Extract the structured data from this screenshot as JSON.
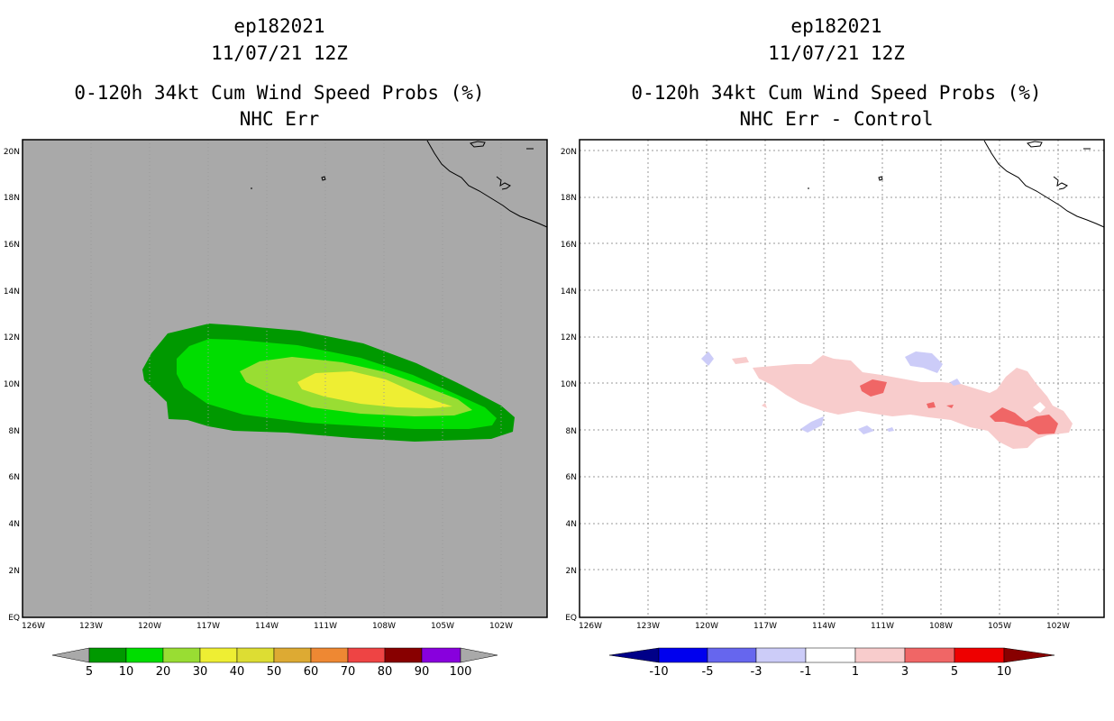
{
  "colors": {
    "land_gray": "#a9a9a9",
    "prob_scale": [
      "#009900",
      "#00dd00",
      "#99dd33",
      "#eeee33",
      "#dddd33",
      "#ddaa33",
      "#ee8833",
      "#ee4444",
      "#880000",
      "#8800dd"
    ],
    "diff_scale": [
      "#000088",
      "#0000ee",
      "#6666ee",
      "#ccccf8",
      "#ffffff",
      "#f8cccc",
      "#f06666",
      "#ee0000",
      "#880000"
    ]
  },
  "left_panel": {
    "title_storm": "ep182021",
    "title_date": "11/07/21 12Z",
    "title_product": "0-120h 34kt Cum Wind Speed Probs (%)",
    "title_sub": "NHC Err",
    "lat_labels": [
      "20N",
      "18N",
      "16N",
      "14N",
      "12N",
      "10N",
      "8N",
      "6N",
      "4N",
      "2N",
      "EQ"
    ],
    "lon_labels": [
      "126W",
      "123W",
      "120W",
      "117W",
      "114W",
      "111W",
      "108W",
      "105W",
      "102W"
    ],
    "colorbar_labels": [
      "5",
      "10",
      "20",
      "30",
      "40",
      "50",
      "60",
      "70",
      "80",
      "90",
      "100"
    ]
  },
  "right_panel": {
    "title_storm": "ep182021",
    "title_date": "11/07/21 12Z",
    "title_product": "0-120h 34kt Cum Wind Speed Probs (%)",
    "title_sub": "NHC Err - Control",
    "lat_labels": [
      "20N",
      "18N",
      "16N",
      "14N",
      "12N",
      "10N",
      "8N",
      "6N",
      "4N",
      "2N",
      "EQ"
    ],
    "lon_labels": [
      "126W",
      "123W",
      "120W",
      "117W",
      "114W",
      "111W",
      "108W",
      "105W",
      "102W"
    ],
    "colorbar_labels": [
      "-10",
      "-5",
      "-3",
      "-1",
      "1",
      "3",
      "5",
      "10"
    ]
  },
  "contour_bands": {
    "left": [
      {
        "level": "5-10",
        "color_index": 0
      },
      {
        "level": "10-20",
        "color_index": 1
      },
      {
        "level": "20-30",
        "color_index": 2
      },
      {
        "level": "30-40",
        "color_index": 3
      }
    ],
    "right": [
      {
        "level": "-3 to -1",
        "color_index": 3
      },
      {
        "level": "1 to 3",
        "color_index": 5
      },
      {
        "level": "3 to 5",
        "color_index": 6
      }
    ]
  }
}
